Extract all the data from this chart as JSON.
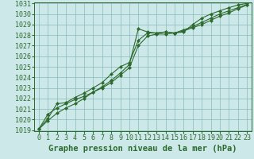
{
  "title": "Graphe pression niveau de la mer (hPa)",
  "bg_color": "#cce8e8",
  "grid_color": "#88bbbb",
  "line_color": "#2d6a2d",
  "x_ticks": [
    0,
    1,
    2,
    3,
    4,
    5,
    6,
    7,
    8,
    9,
    10,
    11,
    12,
    13,
    14,
    15,
    16,
    17,
    18,
    19,
    20,
    21,
    22,
    23
  ],
  "y_min": 1019,
  "y_max": 1031,
  "y_ticks": [
    1019,
    1020,
    1021,
    1022,
    1023,
    1024,
    1025,
    1026,
    1027,
    1028,
    1029,
    1030,
    1031
  ],
  "series": [
    [
      1019.1,
      1019.9,
      1020.6,
      1021.1,
      1021.5,
      1022.0,
      1022.6,
      1023.1,
      1023.7,
      1024.4,
      1025.2,
      1028.6,
      1028.3,
      1028.2,
      1028.3,
      1028.2,
      1028.3,
      1029.0,
      1029.6,
      1030.0,
      1030.3,
      1030.6,
      1030.85,
      1031.0
    ],
    [
      1019.1,
      1020.5,
      1021.1,
      1021.5,
      1021.9,
      1022.2,
      1022.6,
      1023.0,
      1023.5,
      1024.2,
      1024.9,
      1027.0,
      1027.9,
      1028.1,
      1028.1,
      1028.2,
      1028.5,
      1028.8,
      1029.2,
      1029.6,
      1030.0,
      1030.3,
      1030.6,
      1030.9
    ],
    [
      1019.1,
      1020.1,
      1021.5,
      1021.6,
      1022.1,
      1022.5,
      1023.0,
      1023.5,
      1024.3,
      1025.0,
      1025.4,
      1027.5,
      1028.2,
      1028.2,
      1028.3,
      1028.2,
      1028.4,
      1028.7,
      1029.0,
      1029.4,
      1029.8,
      1030.1,
      1030.5,
      1030.85
    ]
  ],
  "title_fontsize": 7.5,
  "tick_fontsize": 6,
  "marker": "D",
  "markersize": 2.0,
  "linewidth": 0.8
}
